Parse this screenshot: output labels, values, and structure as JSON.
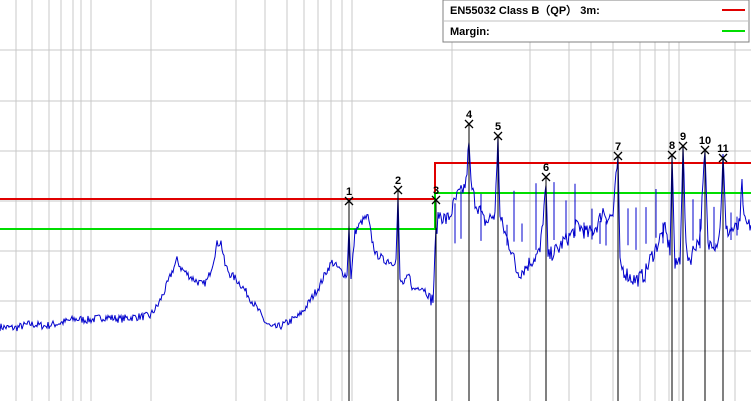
{
  "legend": {
    "limit_label": "EN55032 Class B（QP） 3m:",
    "margin_label": "Margin:"
  },
  "colors": {
    "trace": "#0000cc",
    "limit": "#e00000",
    "margin": "#00dd00",
    "grid": "#c8c8c8",
    "marker": "#000000",
    "background": "#ffffff"
  },
  "chart_data": {
    "type": "line",
    "title": "",
    "xlabel": "",
    "ylabel": "",
    "xlim": [
      0,
      751
    ],
    "ylim": [
      0,
      401
    ],
    "grid": true,
    "legend_position": "top-right",
    "series": [
      {
        "name": "EN55032 Class B（QP） 3m:",
        "values": [
          [
            0,
            201
          ],
          [
            435,
            201
          ],
          [
            435,
            237
          ],
          [
            751,
            237
          ]
        ]
      },
      {
        "name": "Margin:",
        "values": [
          [
            0,
            171
          ],
          [
            435,
            171
          ],
          [
            435,
            207
          ],
          [
            751,
            207
          ]
        ]
      },
      {
        "values": [
          [
            0,
            73
          ],
          [
            15,
            72
          ],
          [
            30,
            76
          ],
          [
            45,
            74
          ],
          [
            60,
            77
          ],
          [
            75,
            81
          ],
          [
            90,
            80
          ],
          [
            105,
            83
          ],
          [
            120,
            81
          ],
          [
            135,
            83
          ],
          [
            150,
            84
          ],
          [
            158,
            95
          ],
          [
            165,
            110
          ],
          [
            172,
            128
          ],
          [
            177,
            140
          ],
          [
            181,
            132
          ],
          [
            186,
            127
          ],
          [
            192,
            122
          ],
          [
            198,
            118
          ],
          [
            203,
            115
          ],
          [
            208,
            121
          ],
          [
            213,
            138
          ],
          [
            217,
            156
          ],
          [
            221,
            158
          ],
          [
            225,
            135
          ],
          [
            230,
            126
          ],
          [
            236,
            121
          ],
          [
            242,
            114
          ],
          [
            250,
            102
          ],
          [
            258,
            90
          ],
          [
            265,
            78
          ],
          [
            272,
            72
          ],
          [
            278,
            73
          ],
          [
            285,
            76
          ],
          [
            292,
            80
          ],
          [
            299,
            84
          ],
          [
            306,
            93
          ],
          [
            313,
            104
          ],
          [
            320,
            115
          ],
          [
            326,
            128
          ],
          [
            332,
            138
          ],
          [
            338,
            132
          ],
          [
            343,
            127
          ],
          [
            347,
            124
          ],
          [
            349,
            175
          ],
          [
            351,
            120
          ],
          [
            355,
            168
          ],
          [
            360,
            176
          ],
          [
            364,
            181
          ],
          [
            368,
            183
          ],
          [
            372,
            160
          ],
          [
            376,
            145
          ],
          [
            380,
            144
          ],
          [
            384,
            139
          ],
          [
            388,
            140
          ],
          [
            392,
            137
          ],
          [
            396,
            140
          ],
          [
            398,
            205
          ],
          [
            400,
            119
          ],
          [
            404,
            116
          ],
          [
            409,
            125
          ],
          [
            413,
            110
          ],
          [
            417,
            112
          ],
          [
            421,
            114
          ],
          [
            425,
            110
          ],
          [
            429,
            104
          ],
          [
            433,
            100
          ],
          [
            436,
            168
          ],
          [
            439,
            186
          ],
          [
            442,
            184
          ],
          [
            446,
            180
          ],
          [
            450,
            184
          ],
          [
            454,
            196
          ],
          [
            458,
            205
          ],
          [
            462,
            208
          ],
          [
            466,
            217
          ],
          [
            469,
            258
          ],
          [
            471,
            215
          ],
          [
            475,
            199
          ],
          [
            479,
            192
          ],
          [
            483,
            180
          ],
          [
            487,
            178
          ],
          [
            491,
            183
          ],
          [
            495,
            185
          ],
          [
            498,
            265
          ],
          [
            500,
            182
          ],
          [
            504,
            170
          ],
          [
            508,
            158
          ],
          [
            512,
            150
          ],
          [
            516,
            130
          ],
          [
            520,
            128
          ],
          [
            525,
            132
          ],
          [
            530,
            138
          ],
          [
            535,
            143
          ],
          [
            540,
            148
          ],
          [
            546,
            215
          ],
          [
            548,
            142
          ],
          [
            553,
            148
          ],
          [
            558,
            150
          ],
          [
            563,
            158
          ],
          [
            568,
            162
          ],
          [
            573,
            168
          ],
          [
            578,
            175
          ],
          [
            583,
            170
          ],
          [
            588,
            166
          ],
          [
            593,
            170
          ],
          [
            598,
            176
          ],
          [
            603,
            190
          ],
          [
            608,
            182
          ],
          [
            613,
            185
          ],
          [
            618,
            244
          ],
          [
            620,
            135
          ],
          [
            625,
            128
          ],
          [
            630,
            123
          ],
          [
            635,
            120
          ],
          [
            640,
            122
          ],
          [
            645,
            126
          ],
          [
            650,
            140
          ],
          [
            655,
            150
          ],
          [
            660,
            162
          ],
          [
            665,
            170
          ],
          [
            670,
            150
          ],
          [
            672,
            245
          ],
          [
            675,
            132
          ],
          [
            680,
            142
          ],
          [
            683,
            255
          ],
          [
            686,
            150
          ],
          [
            690,
            140
          ],
          [
            695,
            155
          ],
          [
            700,
            162
          ],
          [
            705,
            249
          ],
          [
            708,
            152
          ],
          [
            712,
            160
          ],
          [
            716,
            155
          ],
          [
            720,
            170
          ],
          [
            723,
            246
          ],
          [
            726,
            168
          ],
          [
            731,
            170
          ],
          [
            736,
            171
          ],
          [
            740,
            175
          ],
          [
            742,
            221
          ],
          [
            744,
            178
          ],
          [
            748,
            174
          ],
          [
            751,
            175
          ]
        ]
      }
    ],
    "markers": [
      {
        "label": "1",
        "x": 349,
        "y": 199
      },
      {
        "label": "2",
        "x": 398,
        "y": 210
      },
      {
        "label": "3",
        "x": 436,
        "y": 200
      },
      {
        "label": "4",
        "x": 469,
        "y": 276
      },
      {
        "label": "5",
        "x": 498,
        "y": 264
      },
      {
        "label": "6",
        "x": 546,
        "y": 223
      },
      {
        "label": "7",
        "x": 618,
        "y": 244
      },
      {
        "label": "8",
        "x": 672,
        "y": 245
      },
      {
        "label": "9",
        "x": 683,
        "y": 254
      },
      {
        "label": "10",
        "x": 705,
        "y": 250
      },
      {
        "label": "11",
        "x": 723,
        "y": 242
      }
    ]
  }
}
